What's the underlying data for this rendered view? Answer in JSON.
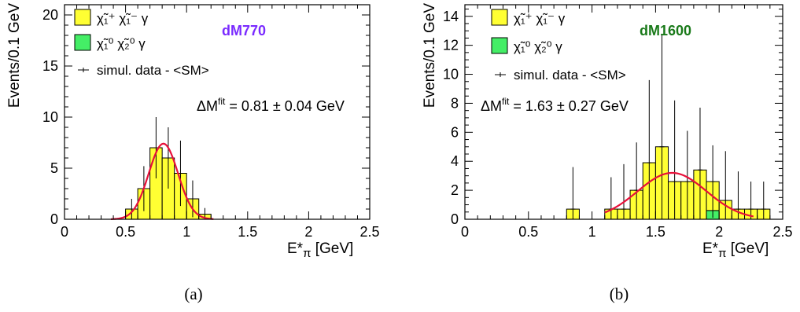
{
  "chart_data": [
    {
      "type": "bar",
      "panel_label": "(a)",
      "tag": "dM770",
      "tag_color": "#7a2bff",
      "ylabel": "Events/0.1 GeV",
      "xlabel": "E*",
      "xlabel_sub": "π",
      "xlabel_unit": " [GeV]",
      "xlim": [
        0,
        2.5
      ],
      "ylim": [
        0,
        21
      ],
      "x_ticks": [
        "0",
        "0.5",
        "1",
        "1.5",
        "2",
        "2.5"
      ],
      "x_tick_values": [
        0,
        0.5,
        1,
        1.5,
        2,
        2.5
      ],
      "y_ticks": [
        "0",
        "5",
        "10",
        "15",
        "20"
      ],
      "y_tick_values": [
        0,
        5,
        10,
        15,
        20
      ],
      "legend": {
        "chargino_pair": "χ̃₁⁺ χ̃₁⁻ γ",
        "neutralino_pair": "χ̃₁⁰ χ̃₂⁰ γ",
        "data": "simul. data - <SM>"
      },
      "fit_text": "ΔM",
      "fit_sup": "fit",
      "fit_value": " = 0.81 ± 0.04 GeV",
      "colors": {
        "chargino": "#ffff33",
        "neutralino": "#44ee66",
        "fit": "#e8103a"
      },
      "bin_width": 0.1,
      "bins": [
        {
          "x": 0.5,
          "chargino": 1.0,
          "neutralino": 0,
          "err": 1.0
        },
        {
          "x": 0.6,
          "chargino": 3.0,
          "neutralino": 0,
          "err": 2.2
        },
        {
          "x": 0.7,
          "chargino": 7.0,
          "neutralino": 0,
          "err": 3.0
        },
        {
          "x": 0.8,
          "chargino": 6.0,
          "neutralino": 0,
          "err": 3.0
        },
        {
          "x": 0.9,
          "chargino": 4.5,
          "neutralino": 0,
          "err": 3.2
        },
        {
          "x": 1.0,
          "chargino": 2.0,
          "neutralino": 0,
          "err": 1.8
        },
        {
          "x": 1.1,
          "chargino": 0.5,
          "neutralino": 0,
          "err": 0.6
        }
      ],
      "fit": {
        "mean": 0.81,
        "sigma": 0.12,
        "amp": 7.4,
        "xmin": 0.38,
        "xmax": 1.22
      }
    },
    {
      "type": "bar",
      "panel_label": "(b)",
      "tag": "dM1600",
      "tag_color": "#1a7a1a",
      "ylabel": "Events/0.1 GeV",
      "xlabel": "E*",
      "xlabel_sub": "π",
      "xlabel_unit": " [GeV]",
      "xlim": [
        0,
        2.5
      ],
      "ylim": [
        0,
        14.8
      ],
      "x_ticks": [
        "0",
        "0.5",
        "1",
        "1.5",
        "2",
        "2.5"
      ],
      "x_tick_values": [
        0,
        0.5,
        1,
        1.5,
        2,
        2.5
      ],
      "y_ticks": [
        "0",
        "2",
        "4",
        "6",
        "8",
        "10",
        "12",
        "14"
      ],
      "y_tick_values": [
        0,
        2,
        4,
        6,
        8,
        10,
        12,
        14
      ],
      "legend": {
        "chargino_pair": "χ̃₁⁺ χ̃₁⁻ γ",
        "neutralino_pair": "χ̃₁⁰ χ̃₂⁰ γ",
        "data": "simul. data - <SM>"
      },
      "fit_text": "ΔM",
      "fit_sup": "fit",
      "fit_value": " = 1.63 ± 0.27 GeV",
      "colors": {
        "chargino": "#ffff33",
        "neutralino": "#44ee66",
        "fit": "#e8103a"
      },
      "bin_width": 0.1,
      "bins": [
        {
          "x": 0.8,
          "chargino": 0.7,
          "neutralino": 0,
          "err": 2.9
        },
        {
          "x": 1.1,
          "chargino": 0.7,
          "neutralino": 0,
          "err": 2.2
        },
        {
          "x": 1.2,
          "chargino": 0.7,
          "neutralino": 0,
          "err": 3.1
        },
        {
          "x": 1.3,
          "chargino": 2.0,
          "neutralino": 0,
          "err": 3.3
        },
        {
          "x": 1.4,
          "chargino": 3.9,
          "neutralino": 0,
          "err": 5.7
        },
        {
          "x": 1.5,
          "chargino": 5.0,
          "neutralino": 0,
          "err": 7.8
        },
        {
          "x": 1.6,
          "chargino": 2.6,
          "neutralino": 0,
          "err": 5.6
        },
        {
          "x": 1.7,
          "chargino": 2.6,
          "neutralino": 0,
          "err": 3.5
        },
        {
          "x": 1.8,
          "chargino": 3.4,
          "neutralino": 0,
          "err": 4.3
        },
        {
          "x": 1.9,
          "chargino": 2.0,
          "neutralino": 0.6,
          "err": 2.5
        },
        {
          "x": 2.0,
          "chargino": 1.3,
          "neutralino": 0,
          "err": 3.4
        },
        {
          "x": 2.1,
          "chargino": 0.7,
          "neutralino": 0,
          "err": 2.6
        },
        {
          "x": 2.2,
          "chargino": 0.7,
          "neutralino": 0,
          "err": 1.9
        },
        {
          "x": 2.3,
          "chargino": 0.7,
          "neutralino": 0,
          "err": 1.9
        }
      ],
      "fit": {
        "mean": 1.63,
        "sigma": 0.27,
        "amp": 3.2,
        "xmin": 1.1,
        "xmax": 2.27
      }
    }
  ]
}
